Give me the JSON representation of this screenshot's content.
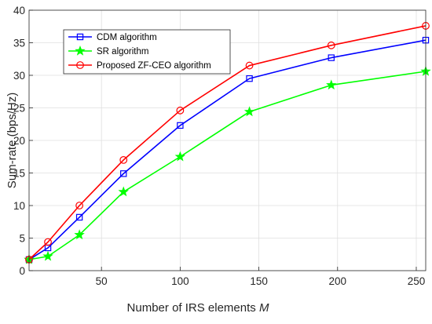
{
  "chart_data": {
    "type": "line",
    "title": "",
    "xlabel": "Number of IRS elements",
    "xlabel_var": "M",
    "ylabel": "Sum-rate (bps/Hz)",
    "xlim": [
      4,
      256
    ],
    "ylim": [
      0,
      40
    ],
    "xticks": [
      50,
      100,
      150,
      200,
      250
    ],
    "yticks": [
      0,
      5,
      10,
      15,
      20,
      25,
      30,
      35,
      40
    ],
    "grid": true,
    "legend_position": "top-left",
    "x": [
      4,
      16,
      36,
      64,
      100,
      144,
      196,
      256
    ],
    "series": [
      {
        "name": "CDM algorithm",
        "color": "#0000ff",
        "marker": "square",
        "values": [
          1.7,
          3.5,
          8.2,
          14.9,
          22.3,
          29.5,
          32.7,
          35.4
        ]
      },
      {
        "name": "SR algorithm",
        "color": "#00ff00",
        "marker": "star",
        "values": [
          1.7,
          2.2,
          5.5,
          12.1,
          17.5,
          24.4,
          28.5,
          30.6
        ]
      },
      {
        "name": "Proposed ZF-CEO algorithm",
        "color": "#ff0000",
        "marker": "circle",
        "values": [
          1.7,
          4.4,
          10.0,
          17.0,
          24.6,
          31.5,
          34.6,
          37.6
        ]
      }
    ]
  }
}
